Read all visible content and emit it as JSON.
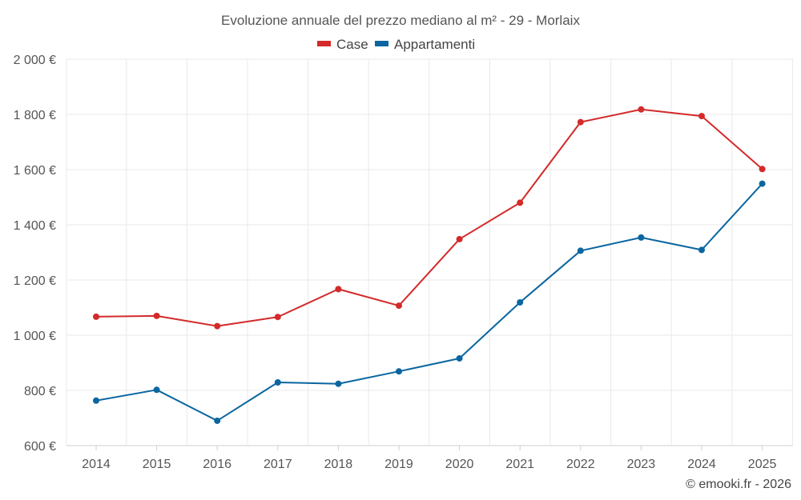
{
  "chart_data": {
    "type": "line",
    "title": "Evoluzione annuale del prezzo mediano al m² - 29 - Morlaix",
    "categories": [
      "2014",
      "2015",
      "2016",
      "2017",
      "2018",
      "2019",
      "2020",
      "2021",
      "2022",
      "2023",
      "2024",
      "2025"
    ],
    "series": [
      {
        "name": "Case",
        "color": "#d42a2a",
        "values": [
          1067,
          1070,
          1033,
          1066,
          1167,
          1107,
          1348,
          1480,
          1772,
          1818,
          1794,
          1602
        ]
      },
      {
        "name": "Appartamenti",
        "color": "#0a66a0",
        "values": [
          763,
          802,
          690,
          829,
          824,
          869,
          916,
          1119,
          1306,
          1354,
          1309,
          1549
        ]
      }
    ],
    "ylim": [
      600,
      2000
    ],
    "yticks": [
      600,
      800,
      1000,
      1200,
      1400,
      1600,
      1800,
      2000
    ],
    "ytick_labels": [
      "600 €",
      "800 €",
      "1 000 €",
      "1 200 €",
      "1 400 €",
      "1 600 €",
      "1 800 €",
      "2 000 €"
    ],
    "xlabel": "",
    "ylabel": "",
    "grid": true,
    "legend": "top-center"
  },
  "credit": "© emooki.fr - 2026"
}
